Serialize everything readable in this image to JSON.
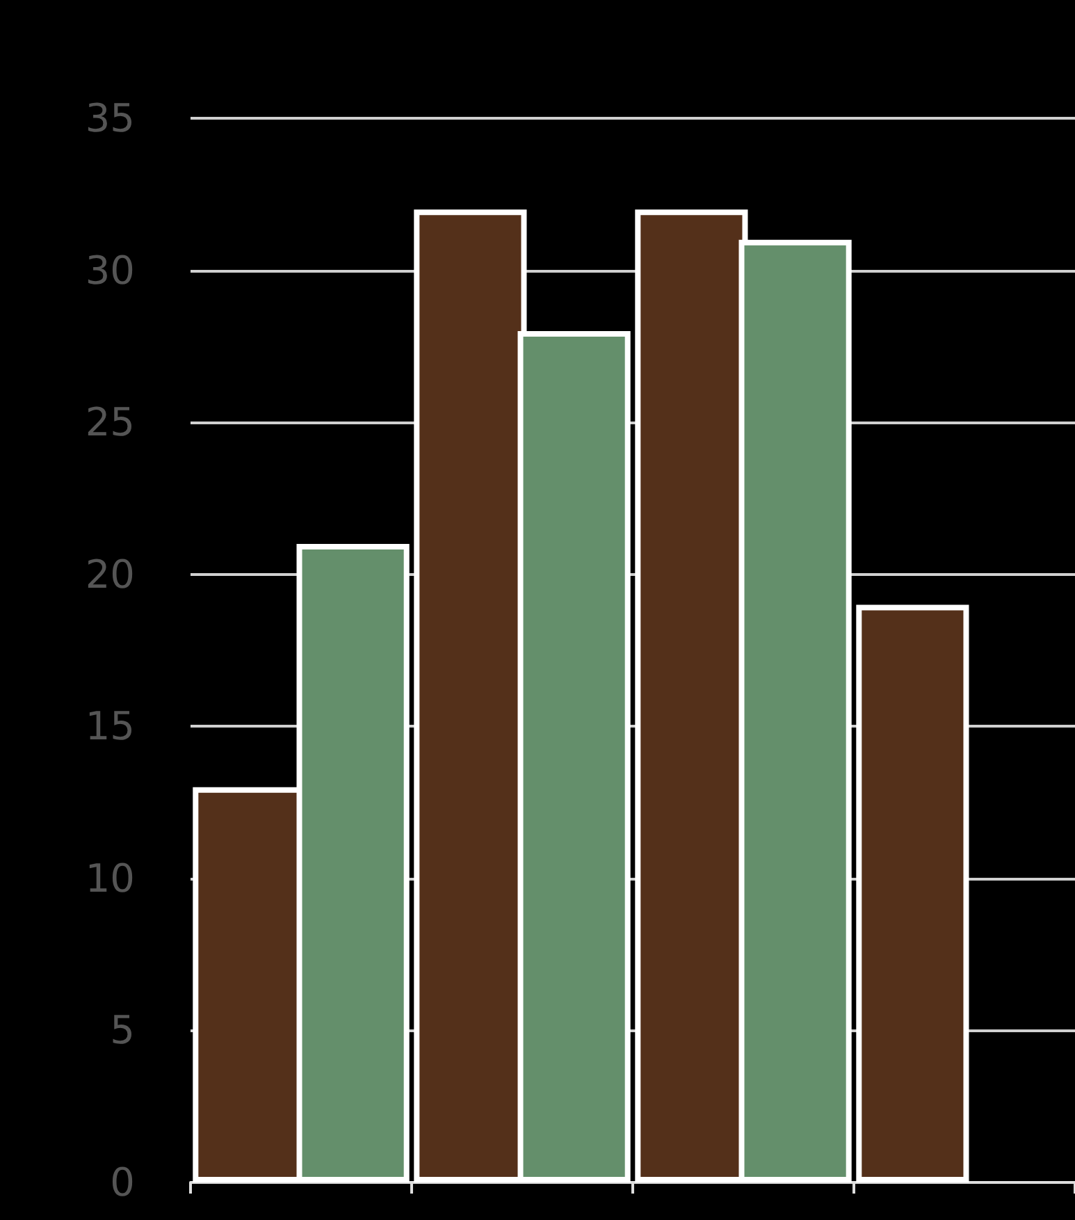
{
  "chart_data": {
    "type": "bar",
    "categories": [
      null,
      null,
      null,
      null
    ],
    "series": [
      {
        "color": "#54301a",
        "values": [
          13,
          32,
          32,
          19
        ]
      },
      {
        "color": "#648f6b",
        "values": [
          21,
          28,
          31,
          null
        ]
      }
    ],
    "ylim": [
      0,
      35
    ],
    "yticks": [
      0,
      5,
      10,
      15,
      20,
      25,
      30,
      35
    ],
    "grid": "y",
    "tick_labels": "y"
  }
}
